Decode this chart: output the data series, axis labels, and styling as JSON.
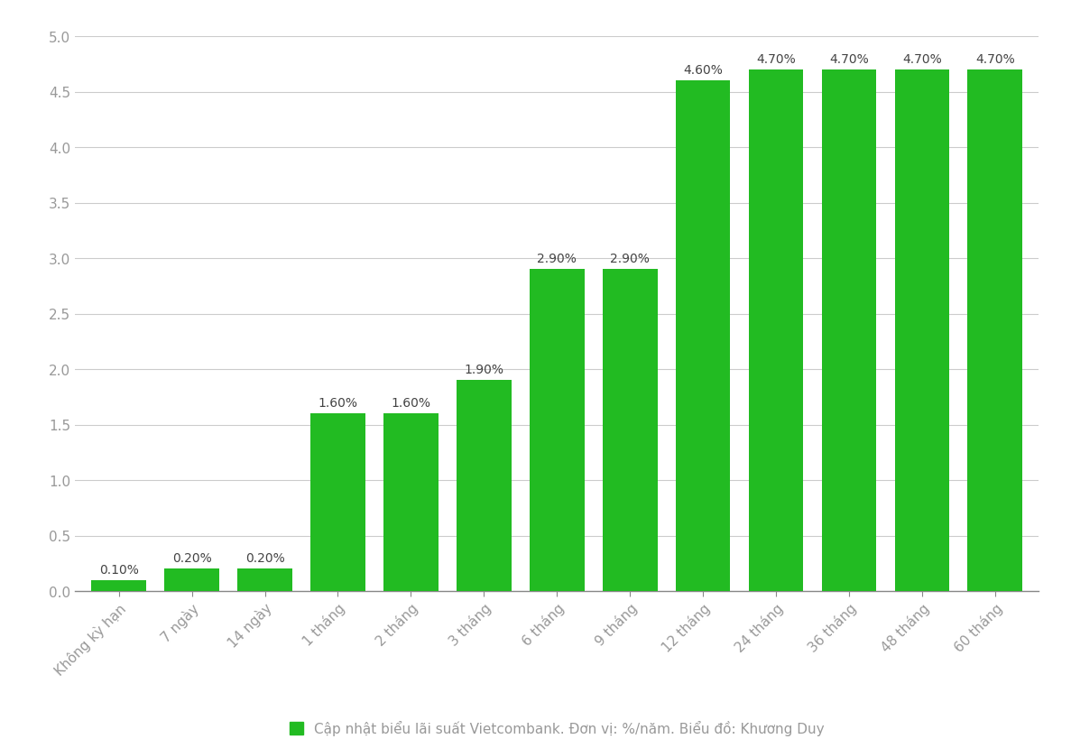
{
  "categories": [
    "Không kỳ hạn",
    "7 ngày",
    "14 ngày",
    "1 tháng",
    "2 tháng",
    "3 tháng",
    "6 tháng",
    "9 tháng",
    "12 tháng",
    "24 tháng",
    "36 tháng",
    "48 tháng",
    "60 tháng"
  ],
  "values": [
    0.1,
    0.2,
    0.2,
    1.6,
    1.6,
    1.9,
    2.9,
    2.9,
    4.6,
    4.7,
    4.7,
    4.7,
    4.7
  ],
  "labels": [
    "0.10%",
    "0.20%",
    "0.20%",
    "1.60%",
    "1.60%",
    "1.90%",
    "2.90%",
    "2.90%",
    "4.60%",
    "4.70%",
    "4.70%",
    "4.70%",
    "4.70%"
  ],
  "bar_color": "#22bb22",
  "background_color": "#ffffff",
  "grid_color": "#cccccc",
  "tick_color": "#999999",
  "label_color": "#444444",
  "legend_text": "Cập nhật biểu lãi suất Vietcombank. Đơn vị: %/năm. Biểu đồ: Khương Duy",
  "ylim": [
    0,
    5.0
  ],
  "yticks": [
    0,
    0.5,
    1.0,
    1.5,
    2.0,
    2.5,
    3.0,
    3.5,
    4.0,
    4.5,
    5.0
  ],
  "bar_width": 0.75,
  "bar_label_fontsize": 10,
  "tick_label_fontsize": 11,
  "legend_fontsize": 11
}
